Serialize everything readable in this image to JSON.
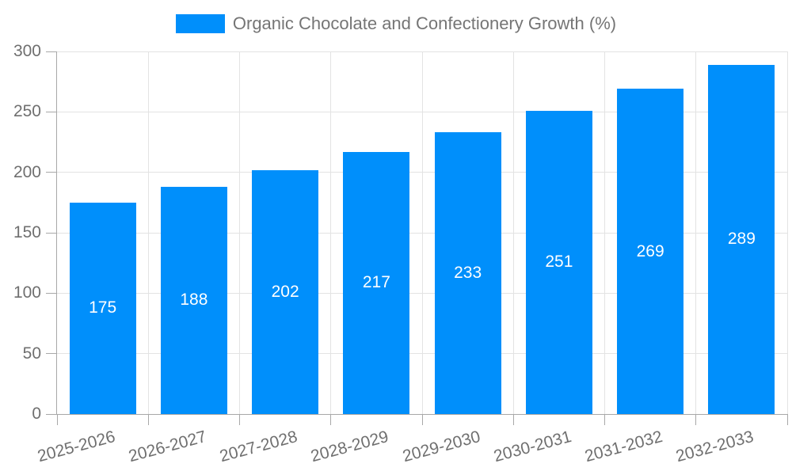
{
  "chart_data": {
    "type": "bar",
    "title": "Organic Chocolate and Confectionery Growth (%)",
    "legend_entries": [
      "Organic Chocolate and Confectionery Growth (%)"
    ],
    "legend_position": "top-center",
    "categories": [
      "2025-2026",
      "2026-2027",
      "2027-2028",
      "2028-2029",
      "2029-2030",
      "2030-2031",
      "2031-2032",
      "2032-2033"
    ],
    "values": [
      175,
      188,
      202,
      217,
      233,
      251,
      269,
      289
    ],
    "bar_value_labels": [
      "175",
      "188",
      "202",
      "217",
      "233",
      "251",
      "269",
      "289"
    ],
    "xlabel": "",
    "ylabel": "",
    "ylim": [
      0,
      300
    ],
    "yticks": [
      0,
      50,
      100,
      150,
      200,
      250,
      300
    ],
    "x_label_rotation_deg": -15,
    "grid": "on",
    "colors": {
      "bar": "#008FFB",
      "bar_value_label": "#ffffff",
      "axis_label": "#6f6f6f",
      "legend_label": "#757575",
      "gridline": "#e3e3e3",
      "axis_line": "#a8a8a8",
      "background": "#ffffff"
    }
  }
}
